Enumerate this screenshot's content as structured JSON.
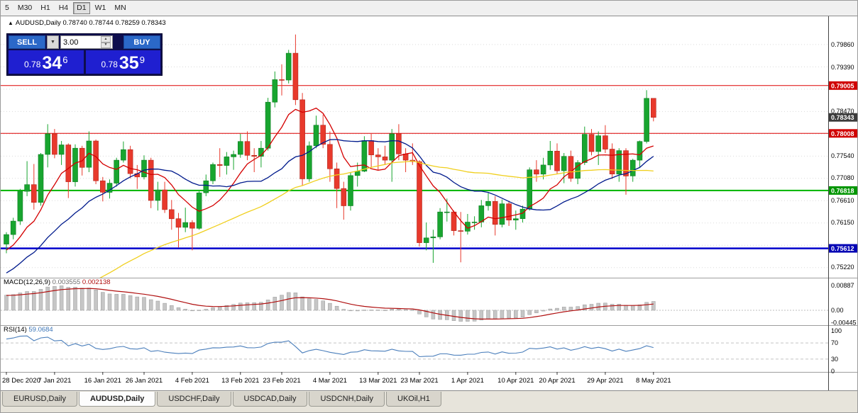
{
  "toolbar": {
    "timeframes": [
      "5",
      "M30",
      "H1",
      "H4",
      "D1",
      "W1",
      "MN"
    ],
    "active": "D1"
  },
  "trade_panel": {
    "sell_label": "SELL",
    "buy_label": "BUY",
    "volume": "3.00",
    "sell_price": {
      "prefix": "0.78",
      "big": "34",
      "sup": "6"
    },
    "buy_price": {
      "prefix": "0.78",
      "big": "35",
      "sup": "9"
    }
  },
  "chart": {
    "collapse_icon": "▲",
    "title": "AUDUSD,Daily",
    "ohlc": "0.78740 0.78744 0.78259 0.78343"
  },
  "indicators": {
    "macd": {
      "label": "MACD(12,26,9)",
      "value_main": "0.003555",
      "value_signal": "0.002138"
    },
    "rsi": {
      "label": "RSI(14)",
      "value": "59.0684"
    }
  },
  "tabs": {
    "items": [
      "EURUSD,Daily",
      "AUDUSD,Daily",
      "USDCHF,Daily",
      "USDCAD,Daily",
      "USDCNH,Daily",
      "UKOil,H1"
    ],
    "active": "AUDUSD,Daily"
  },
  "chart_data": {
    "type": "candlestick",
    "symbol": "AUDUSD",
    "period": "Daily",
    "current": {
      "open": 0.7874,
      "high": 0.78744,
      "low": 0.78259,
      "close": 0.78343
    },
    "y_axis": {
      "price_top": 0.8045,
      "price_bottom": 0.75,
      "labels": [
        {
          "text": "0.79860",
          "price": 0.7986
        },
        {
          "text": "0.79390",
          "price": 0.7939
        },
        {
          "text": "0.78470",
          "price": 0.7847
        },
        {
          "text": "0.77540",
          "price": 0.7754
        },
        {
          "text": "0.77080",
          "price": 0.7708
        },
        {
          "text": "0.76610",
          "price": 0.7661
        },
        {
          "text": "0.76150",
          "price": 0.7615
        },
        {
          "text": "0.75220",
          "price": 0.7522
        }
      ],
      "gridlines": [
        0.7986,
        0.79395,
        0.7893,
        0.78465,
        0.78,
        0.77535,
        0.7707,
        0.76605,
        0.7614,
        0.75675,
        0.7521
      ]
    },
    "hlines": [
      {
        "price": 0.79005,
        "color": "#dd0000",
        "width": 1
      },
      {
        "price": 0.78008,
        "color": "#dd0000",
        "width": 1
      },
      {
        "price": 0.76818,
        "color": "#00b400",
        "width": 2
      },
      {
        "price": 0.75612,
        "color": "#0000cc",
        "width": 2.5
      }
    ],
    "price_badges": [
      {
        "text": "0.79005",
        "price": 0.79005,
        "color": "#d00000"
      },
      {
        "text": "0.78343",
        "price": 0.78343,
        "color": "#3c3c3c"
      },
      {
        "text": "0.78008",
        "price": 0.78008,
        "color": "#d00000"
      },
      {
        "text": "0.76818",
        "price": 0.76818,
        "color": "#009600"
      },
      {
        "text": "0.75612",
        "price": 0.75612,
        "color": "#0000b4"
      }
    ],
    "x_ticks": [
      {
        "label": "28 Dec 2020",
        "i": 0
      },
      {
        "label": "7 Jan 2021",
        "i": 7
      },
      {
        "label": "16 Jan 2021",
        "i": 14
      },
      {
        "label": "26 Jan 2021",
        "i": 20
      },
      {
        "label": "4 Feb 2021",
        "i": 27
      },
      {
        "label": "13 Feb 2021",
        "i": 34
      },
      {
        "label": "23 Feb 2021",
        "i": 40
      },
      {
        "label": "4 Mar 2021",
        "i": 47
      },
      {
        "label": "13 Mar 2021",
        "i": 54
      },
      {
        "label": "23 Mar 2021",
        "i": 60
      },
      {
        "label": "1 Apr 2021",
        "i": 67
      },
      {
        "label": "10 Apr 2021",
        "i": 74
      },
      {
        "label": "20 Apr 2021",
        "i": 80
      },
      {
        "label": "29 Apr 2021",
        "i": 87
      },
      {
        "label": "8 May 2021",
        "i": 94
      }
    ],
    "candles": [
      [
        0.757,
        0.7595,
        0.7551,
        0.759
      ],
      [
        0.759,
        0.7625,
        0.758,
        0.7618
      ],
      [
        0.7618,
        0.7685,
        0.761,
        0.768
      ],
      [
        0.768,
        0.7743,
        0.767,
        0.7694
      ],
      [
        0.7694,
        0.7737,
        0.7642,
        0.7657
      ],
      [
        0.7657,
        0.776,
        0.765,
        0.7757
      ],
      [
        0.7757,
        0.782,
        0.773,
        0.78
      ],
      [
        0.78,
        0.781,
        0.7749,
        0.7757
      ],
      [
        0.7757,
        0.7785,
        0.7735,
        0.7777
      ],
      [
        0.7777,
        0.778,
        0.7666,
        0.77
      ],
      [
        0.77,
        0.7778,
        0.769,
        0.777
      ],
      [
        0.777,
        0.7775,
        0.7713,
        0.773
      ],
      [
        0.773,
        0.7805,
        0.772,
        0.7785
      ],
      [
        0.7785,
        0.7788,
        0.7695,
        0.7702
      ],
      [
        0.7702,
        0.771,
        0.7659,
        0.7678
      ],
      [
        0.7678,
        0.7705,
        0.7665,
        0.7697
      ],
      [
        0.7697,
        0.775,
        0.769,
        0.7745
      ],
      [
        0.7745,
        0.7784,
        0.774,
        0.7767
      ],
      [
        0.7767,
        0.7775,
        0.7707,
        0.7717
      ],
      [
        0.7717,
        0.7735,
        0.7685,
        0.771
      ],
      [
        0.771,
        0.7755,
        0.7705,
        0.7745
      ],
      [
        0.7745,
        0.775,
        0.7645,
        0.7661
      ],
      [
        0.7661,
        0.77,
        0.764,
        0.7683
      ],
      [
        0.7683,
        0.77,
        0.7635,
        0.7642
      ],
      [
        0.7642,
        0.7662,
        0.76,
        0.7623
      ],
      [
        0.7623,
        0.7635,
        0.7563,
        0.7605
      ],
      [
        0.7605,
        0.7646,
        0.7595,
        0.7615
      ],
      [
        0.7615,
        0.762,
        0.7557,
        0.7603
      ],
      [
        0.7603,
        0.768,
        0.76,
        0.7677
      ],
      [
        0.7677,
        0.7715,
        0.767,
        0.7702
      ],
      [
        0.7702,
        0.774,
        0.7695,
        0.7736
      ],
      [
        0.7736,
        0.777,
        0.771,
        0.7734
      ],
      [
        0.7734,
        0.7762,
        0.7715,
        0.7752
      ],
      [
        0.7752,
        0.7765,
        0.7725,
        0.7757
      ],
      [
        0.7757,
        0.78,
        0.775,
        0.7784
      ],
      [
        0.7784,
        0.7805,
        0.7745,
        0.7755
      ],
      [
        0.7755,
        0.777,
        0.772,
        0.7753
      ],
      [
        0.7753,
        0.7785,
        0.773,
        0.777
      ],
      [
        0.777,
        0.7875,
        0.7765,
        0.7866
      ],
      [
        0.7866,
        0.793,
        0.7855,
        0.7913
      ],
      [
        0.7913,
        0.7945,
        0.788,
        0.7912
      ],
      [
        0.7912,
        0.7975,
        0.7905,
        0.7968
      ],
      [
        0.7968,
        0.8007,
        0.786,
        0.7871
      ],
      [
        0.7871,
        0.7885,
        0.7692,
        0.7706
      ],
      [
        0.7706,
        0.7784,
        0.77,
        0.7775
      ],
      [
        0.7775,
        0.7838,
        0.777,
        0.7818
      ],
      [
        0.7818,
        0.784,
        0.777,
        0.7778
      ],
      [
        0.7778,
        0.7805,
        0.77,
        0.7727
      ],
      [
        0.7727,
        0.774,
        0.7645,
        0.7686
      ],
      [
        0.7686,
        0.77,
        0.7621,
        0.765
      ],
      [
        0.765,
        0.772,
        0.764,
        0.7713
      ],
      [
        0.7713,
        0.774,
        0.769,
        0.7722
      ],
      [
        0.7722,
        0.7795,
        0.772,
        0.7786
      ],
      [
        0.7786,
        0.78,
        0.773,
        0.7756
      ],
      [
        0.7756,
        0.777,
        0.7725,
        0.7752
      ],
      [
        0.7752,
        0.7775,
        0.7735,
        0.7745
      ],
      [
        0.7745,
        0.781,
        0.77,
        0.78
      ],
      [
        0.78,
        0.782,
        0.7745,
        0.7758
      ],
      [
        0.7758,
        0.777,
        0.772,
        0.7745
      ],
      [
        0.7745,
        0.778,
        0.7735,
        0.7742
      ],
      [
        0.7742,
        0.7745,
        0.7565,
        0.7573
      ],
      [
        0.7573,
        0.7615,
        0.7557,
        0.7583
      ],
      [
        0.7583,
        0.76,
        0.7531,
        0.7585
      ],
      [
        0.7585,
        0.7645,
        0.758,
        0.7637
      ],
      [
        0.7637,
        0.7665,
        0.7617,
        0.7637
      ],
      [
        0.7637,
        0.764,
        0.7588,
        0.7598
      ],
      [
        0.7598,
        0.7637,
        0.7532,
        0.7597
      ],
      [
        0.7597,
        0.7633,
        0.759,
        0.7616
      ],
      [
        0.7616,
        0.7628,
        0.76,
        0.7616
      ],
      [
        0.7616,
        0.7662,
        0.7605,
        0.765
      ],
      [
        0.765,
        0.7677,
        0.764,
        0.7659
      ],
      [
        0.7659,
        0.767,
        0.7588,
        0.7611
      ],
      [
        0.7611,
        0.7663,
        0.7605,
        0.7654
      ],
      [
        0.7654,
        0.766,
        0.7608,
        0.762
      ],
      [
        0.762,
        0.764,
        0.76,
        0.7623
      ],
      [
        0.7623,
        0.765,
        0.7615,
        0.7643
      ],
      [
        0.7643,
        0.773,
        0.764,
        0.7725
      ],
      [
        0.7725,
        0.7745,
        0.77,
        0.7716
      ],
      [
        0.7716,
        0.775,
        0.7705,
        0.7735
      ],
      [
        0.7735,
        0.7785,
        0.7725,
        0.7764
      ],
      [
        0.7764,
        0.778,
        0.7717,
        0.7723
      ],
      [
        0.7723,
        0.776,
        0.7697,
        0.7753
      ],
      [
        0.7753,
        0.7765,
        0.77,
        0.7707
      ],
      [
        0.7707,
        0.7745,
        0.7695,
        0.774
      ],
      [
        0.774,
        0.7815,
        0.7735,
        0.7799
      ],
      [
        0.7799,
        0.781,
        0.7755,
        0.7763
      ],
      [
        0.7763,
        0.7805,
        0.7735,
        0.7796
      ],
      [
        0.7796,
        0.7818,
        0.776,
        0.7768
      ],
      [
        0.7768,
        0.778,
        0.7706,
        0.7716
      ],
      [
        0.7716,
        0.777,
        0.77,
        0.7765
      ],
      [
        0.7765,
        0.777,
        0.7673,
        0.7712
      ],
      [
        0.7712,
        0.7748,
        0.77,
        0.7745
      ],
      [
        0.7745,
        0.7786,
        0.773,
        0.7784
      ],
      [
        0.7784,
        0.7891,
        0.778,
        0.7874
      ],
      [
        0.7874,
        0.78744,
        0.78259,
        0.78343
      ]
    ],
    "moving_averages": [
      {
        "period": 8,
        "color": "#d40000"
      },
      {
        "period": 20,
        "color": "#001a8c"
      },
      {
        "period": 55,
        "color": "#f0cf1d"
      }
    ],
    "macd": {
      "fast": 12,
      "slow": 26,
      "signal": 9,
      "axis": [
        {
          "text": "0.00887",
          "v": 0.00887
        },
        {
          "text": "0.00",
          "v": 0
        },
        {
          "text": "-0.00445",
          "v": -0.00445
        }
      ]
    },
    "rsi": {
      "period": 14,
      "levels": [
        70,
        30
      ],
      "axis": [
        {
          "text": "100",
          "v": 100
        },
        {
          "text": "70",
          "v": 70
        },
        {
          "text": "30",
          "v": 30
        },
        {
          "text": "0",
          "v": 0
        }
      ]
    },
    "colors": {
      "up": "#18a52f",
      "down": "#e8392c",
      "up_border": "#0f7d24",
      "down_border": "#b2271d",
      "macd_hist": "#c6c6c6",
      "macd_hist_border": "#9a9a9a",
      "macd_signal": "#b01010",
      "rsi_line": "#4a7ebb",
      "grid": "#dadada"
    }
  }
}
